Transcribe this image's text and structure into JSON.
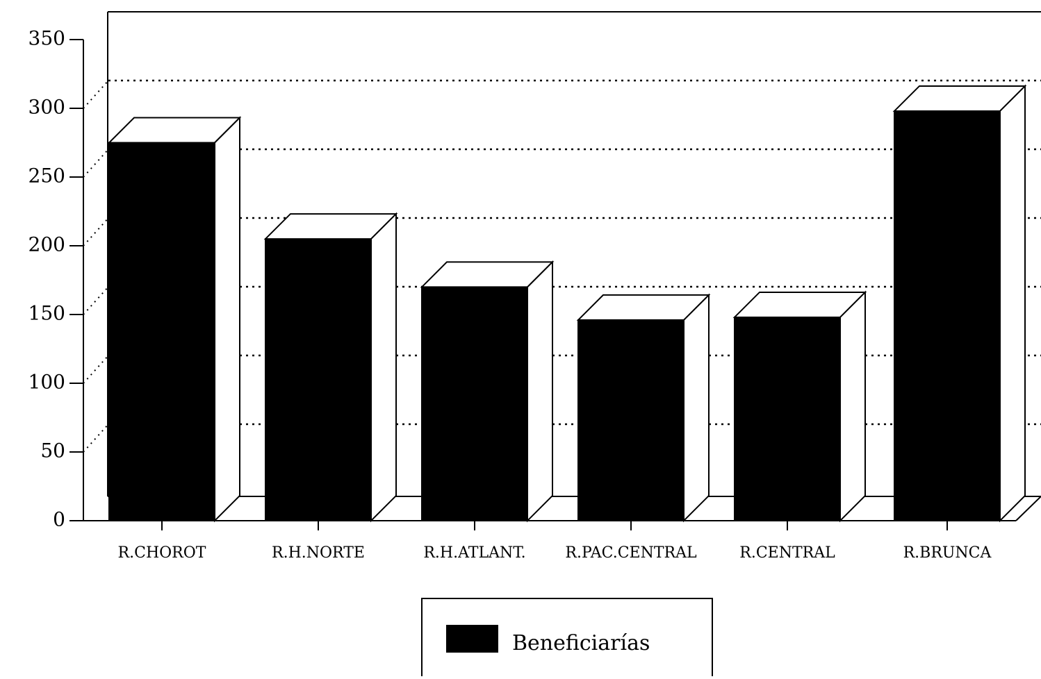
{
  "chart_data": {
    "type": "bar",
    "categories": [
      "R.CHOROT",
      "R.H.NORTE",
      "R.H.ATLANT.",
      "R.PAC.CENTRAL",
      "R.CENTRAL",
      "R.BRUNCA"
    ],
    "series": [
      {
        "name": "Beneficiarías",
        "color": "#000000",
        "values": [
          275,
          205,
          170,
          146,
          148,
          298
        ]
      }
    ],
    "ylim": [
      0,
      350
    ],
    "yticks": [
      0,
      50,
      100,
      150,
      200,
      250,
      300,
      350
    ],
    "grid": true,
    "legend": "bottom"
  }
}
